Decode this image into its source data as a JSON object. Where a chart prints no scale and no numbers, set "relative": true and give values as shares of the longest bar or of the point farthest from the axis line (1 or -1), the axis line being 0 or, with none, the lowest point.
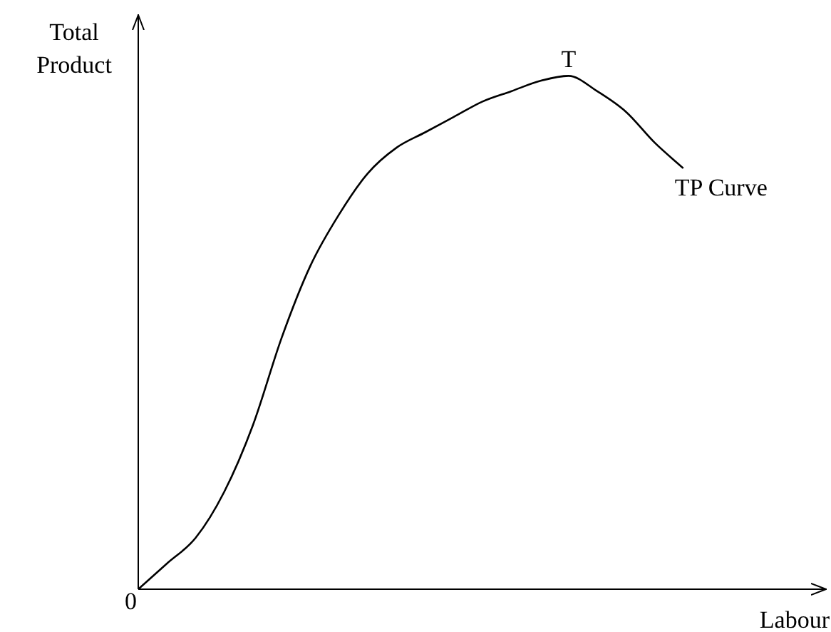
{
  "chart_data": {
    "type": "line",
    "relative": true,
    "xlabel": "Labour",
    "ylabel": "Total Product",
    "categories": [
      null,
      null,
      null,
      null,
      null,
      null,
      null,
      null,
      null,
      null,
      null,
      null,
      null,
      null,
      null,
      null,
      null,
      null,
      null,
      null,
      null,
      null,
      null,
      null,
      null
    ],
    "series": [
      {
        "name": "TP Curve",
        "color": "#000000",
        "values": [
          0,
          0.05,
          0.1,
          0.19,
          0.32,
          0.49,
          0.63,
          0.73,
          0.81,
          0.86,
          0.89,
          0.92,
          0.95,
          0.97,
          0.99,
          1,
          0.97,
          0.93,
          0.87,
          0.82,
          null,
          null,
          null,
          null,
          null
        ]
      }
    ],
    "annotations": [
      "0",
      {
        "text": "T",
        "y": 1
      }
    ],
    "marker": "none",
    "line_style": "solid",
    "legend": false
  }
}
